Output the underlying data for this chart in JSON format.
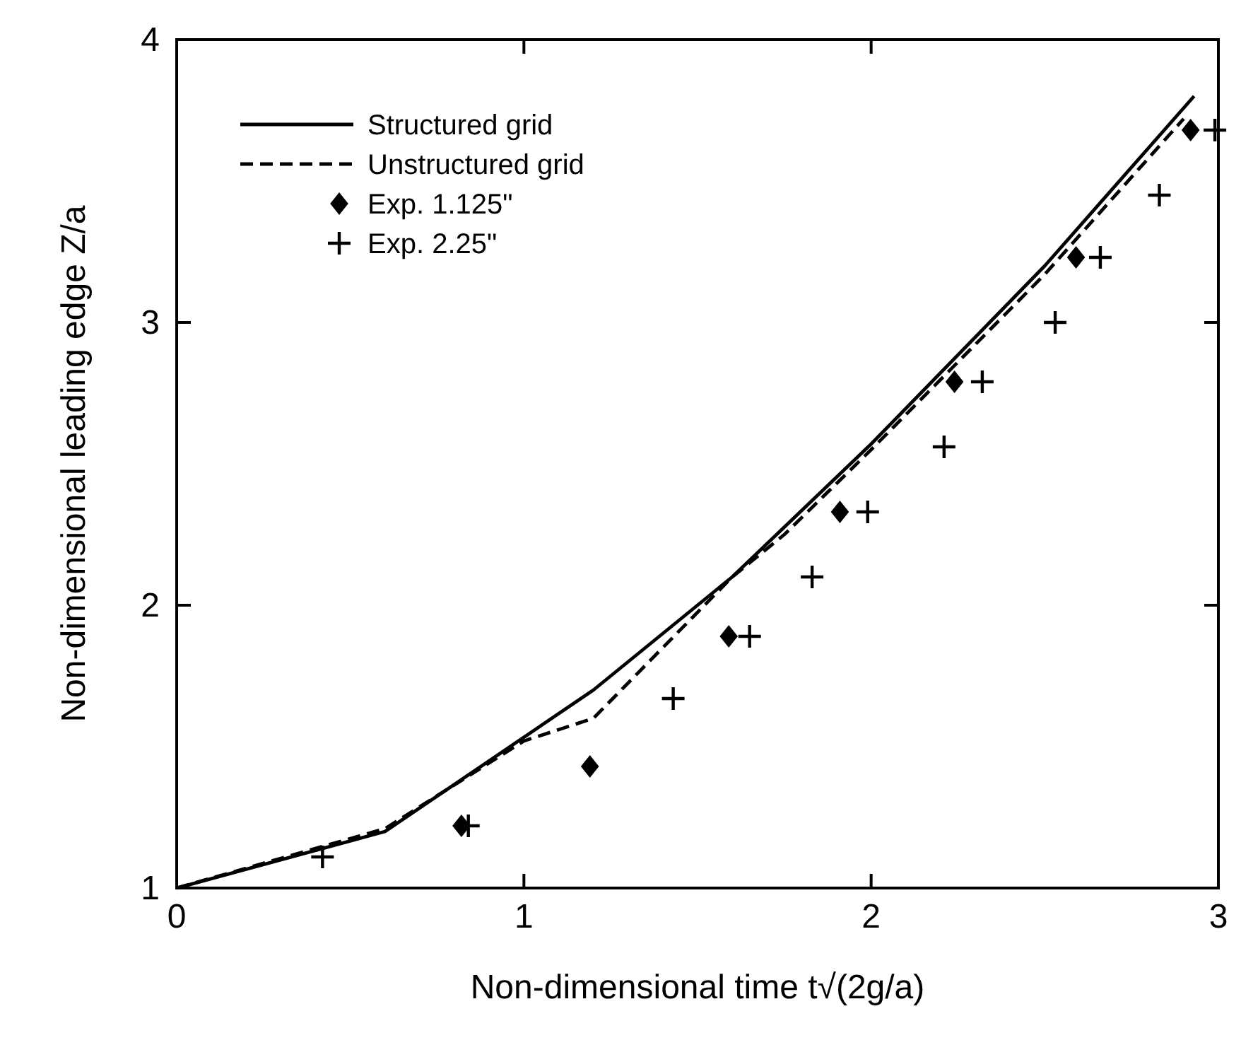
{
  "chart_data": {
    "type": "line",
    "xlabel": "Non-dimensional time  t√(2g/a)",
    "ylabel": "Non-dimensional leading edge  Z/a",
    "xlim": [
      0,
      3
    ],
    "ylim": [
      1,
      4
    ],
    "xticks": [
      0,
      1,
      2,
      3
    ],
    "yticks": [
      1,
      2,
      3,
      4
    ],
    "legend": "top left",
    "grid": false,
    "series": [
      {
        "name": "Structured grid",
        "line_style": "solid",
        "marker": "none",
        "color": "#000000",
        "x": [
          0,
          0.6,
          1.2,
          1.6,
          2,
          2.5,
          2.93
        ],
        "values": [
          1,
          1.2,
          1.7,
          2.1,
          2.57,
          3.2,
          3.8
        ]
      },
      {
        "name": "Unstructured grid",
        "line_style": "dashed",
        "marker": "none",
        "color": "#000000",
        "x": [
          0,
          0.6,
          1,
          1.2,
          1.4,
          1.6,
          1.75,
          2,
          2.5,
          2.9
        ],
        "values": [
          1,
          1.21,
          1.52,
          1.6,
          1.85,
          2.1,
          2.25,
          2.55,
          3.17,
          3.72
        ]
      },
      {
        "name": "Exp. 1.125\"",
        "type": "scatter",
        "marker": "diamond",
        "color": "#000000",
        "x": [
          0.82,
          1.19,
          1.59,
          1.91,
          2.24,
          2.59,
          2.92
        ],
        "values": [
          1.22,
          1.43,
          1.89,
          2.33,
          2.79,
          3.23,
          3.68
        ]
      },
      {
        "name": "Exp. 2.25\"",
        "type": "scatter",
        "marker": "cross",
        "color": "#000000",
        "x": [
          0.42,
          0.84,
          1.43,
          1.65,
          1.83,
          1.99,
          2.21,
          2.32,
          2.53,
          2.66,
          2.83,
          2.99
        ],
        "values": [
          1.11,
          1.22,
          1.67,
          1.89,
          2.1,
          2.33,
          2.56,
          2.79,
          3,
          3.23,
          3.45,
          3.68
        ]
      }
    ]
  }
}
